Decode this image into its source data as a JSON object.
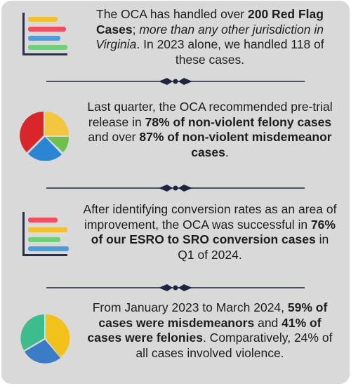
{
  "sections": [
    {
      "icon": "bar-chart-icon",
      "parts": [
        {
          "t": "The OCA has handled over ",
          "s": "n"
        },
        {
          "t": "200 Red Flag Cases",
          "s": "b"
        },
        {
          "t": "; ",
          "s": "n"
        },
        {
          "t": "more than any other jurisdiction in Virginia",
          "s": "i"
        },
        {
          "t": ". In 2023 alone, we handled 118 of these cases.",
          "s": "n"
        }
      ]
    },
    {
      "icon": "pie-chart-icon",
      "parts": [
        {
          "t": "Last quarter, the  OCA recommended pre-trial release in ",
          "s": "n"
        },
        {
          "t": "78% of non-violent felony cases",
          "s": "b"
        },
        {
          "t": " and over ",
          "s": "n"
        },
        {
          "t": "87% of non-violent misdemeanor cases",
          "s": "b"
        },
        {
          "t": ".",
          "s": "n"
        }
      ]
    },
    {
      "icon": "bar-chart-icon",
      "parts": [
        {
          "t": "After identifying conversion rates as an area of improvement, the OCA was successful in ",
          "s": "n"
        },
        {
          "t": "76% of our ESRO to SRO conversion cases",
          "s": "b"
        },
        {
          "t": " in Q1 of 2024.",
          "s": "n"
        }
      ]
    },
    {
      "icon": "pie-chart-icon",
      "parts": [
        {
          "t": "From January 2023 to March 2024, ",
          "s": "n"
        },
        {
          "t": "59% of cases were misdemeanors",
          "s": "b"
        },
        {
          "t": " and ",
          "s": "n"
        },
        {
          "t": "41% of cases were felonies",
          "s": "b"
        },
        {
          "t": ". Comparatively, 24% of all cases involved violence.",
          "s": "n"
        }
      ]
    }
  ],
  "colors": {
    "card_background": "#d9d9d9",
    "divider": "#1e2540",
    "text": "#1d1d1d",
    "bar_yellow": "#f2c12e",
    "bar_red": "#ef4f62",
    "bar_blue": "#4a9ee0",
    "bar_green": "#6fcf7a",
    "pie_yellow": "#f3c642",
    "pie_red": "#d9262b",
    "pie_blue": "#2a86d3",
    "pie_green": "#6fbf4e",
    "pie_teal": "#3dbd8e",
    "pie_gold": "#f2c21a",
    "pie_navy": "#3b7cc7"
  }
}
